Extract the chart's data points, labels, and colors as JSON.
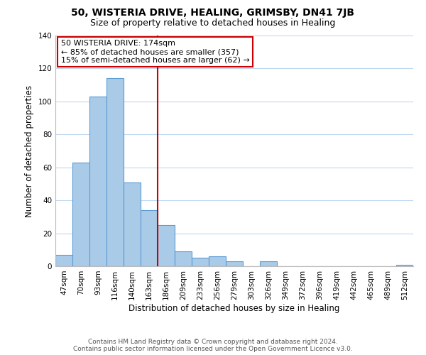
{
  "title": "50, WISTERIA DRIVE, HEALING, GRIMSBY, DN41 7JB",
  "subtitle": "Size of property relative to detached houses in Healing",
  "xlabel": "Distribution of detached houses by size in Healing",
  "ylabel": "Number of detached properties",
  "bin_labels": [
    "47sqm",
    "70sqm",
    "93sqm",
    "116sqm",
    "140sqm",
    "163sqm",
    "186sqm",
    "209sqm",
    "233sqm",
    "256sqm",
    "279sqm",
    "303sqm",
    "326sqm",
    "349sqm",
    "372sqm",
    "396sqm",
    "419sqm",
    "442sqm",
    "465sqm",
    "489sqm",
    "512sqm"
  ],
  "bar_heights": [
    7,
    63,
    103,
    114,
    51,
    34,
    25,
    9,
    5,
    6,
    3,
    0,
    3,
    0,
    0,
    0,
    0,
    0,
    0,
    0,
    1
  ],
  "bar_color": "#aacbe8",
  "bar_edge_color": "#5b9bd5",
  "vline_x": 5.5,
  "vline_color": "#cc0000",
  "annotation_lines": [
    "50 WISTERIA DRIVE: 174sqm",
    "← 85% of detached houses are smaller (357)",
    "15% of semi-detached houses are larger (62) →"
  ],
  "annotation_box_edge_color": "#cc0000",
  "ylim": [
    0,
    140
  ],
  "yticks": [
    0,
    20,
    40,
    60,
    80,
    100,
    120,
    140
  ],
  "footer_lines": [
    "Contains HM Land Registry data © Crown copyright and database right 2024.",
    "Contains public sector information licensed under the Open Government Licence v3.0."
  ],
  "background_color": "#ffffff",
  "grid_color": "#c0d8ee",
  "title_fontsize": 10,
  "subtitle_fontsize": 9,
  "axis_label_fontsize": 8.5,
  "tick_fontsize": 7.5,
  "annotation_fontsize": 8,
  "footer_fontsize": 6.5
}
